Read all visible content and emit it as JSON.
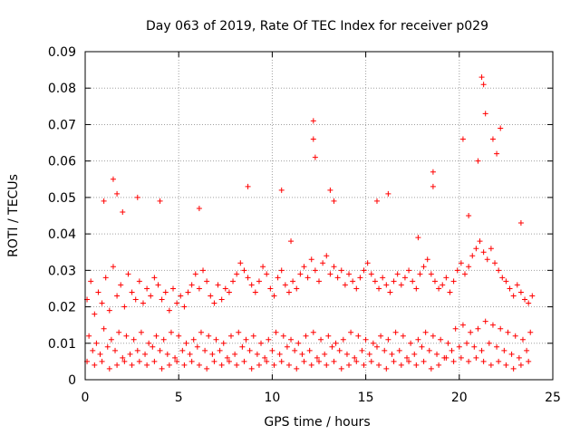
{
  "chart_data": {
    "type": "scatter",
    "title": "Day 063 of 2019, Rate Of TEC Index for receiver p029",
    "xlabel": "GPS time / hours",
    "ylabel": "ROTI / TECUs",
    "xlim": [
      0,
      25
    ],
    "ylim": [
      0,
      0.09
    ],
    "x_ticks": [
      0,
      5,
      10,
      15,
      20,
      25
    ],
    "x_tick_labels": [
      "0",
      "5",
      "10",
      "15",
      "20",
      "25"
    ],
    "y_ticks": [
      0,
      0.01,
      0.02,
      0.03,
      0.04,
      0.05,
      0.06,
      0.07,
      0.08,
      0.09
    ],
    "y_tick_labels": [
      "0",
      "0.01",
      "0.02",
      "0.03",
      "0.04",
      "0.05",
      "0.06",
      "0.07",
      "0.08",
      "0.09"
    ],
    "grid": true,
    "marker": "+",
    "series_color": "#ff0000",
    "series": [
      {
        "name": "ROTI",
        "x": [
          0.1,
          0.3,
          0.5,
          0.7,
          0.9,
          1.1,
          1.3,
          1.5,
          1.7,
          1.9,
          2.1,
          2.3,
          2.5,
          2.7,
          2.9,
          3.1,
          3.3,
          3.5,
          3.7,
          3.9,
          4.1,
          4.3,
          4.5,
          4.7,
          4.9,
          5.1,
          5.3,
          5.5,
          5.7,
          5.9,
          6.1,
          6.3,
          6.5,
          6.7,
          6.9,
          7.1,
          7.3,
          7.5,
          7.7,
          7.9,
          8.1,
          8.3,
          8.5,
          8.7,
          8.9,
          9.1,
          9.3,
          9.5,
          9.7,
          9.9,
          10.1,
          10.3,
          10.5,
          10.7,
          10.9,
          11.1,
          11.3,
          11.5,
          11.7,
          11.9,
          12.1,
          12.3,
          12.5,
          12.7,
          12.9,
          13.1,
          13.3,
          13.5,
          13.7,
          13.9,
          14.1,
          14.3,
          14.5,
          14.7,
          14.9,
          15.1,
          15.3,
          15.5,
          15.7,
          15.9,
          16.1,
          16.3,
          16.5,
          16.7,
          16.9,
          17.1,
          17.3,
          17.5,
          17.7,
          17.9,
          18.1,
          18.3,
          18.5,
          18.7,
          18.9,
          19.1,
          19.3,
          19.5,
          19.7,
          19.9,
          20.1,
          20.3,
          20.5,
          20.7,
          20.9,
          21.1,
          21.3,
          21.5,
          21.7,
          21.9,
          22.1,
          22.3,
          22.5,
          22.7,
          22.9,
          23.1,
          23.3,
          23.5,
          23.7,
          23.9,
          0.2,
          0.6,
          1.0,
          1.4,
          1.8,
          2.2,
          2.6,
          3.0,
          3.4,
          3.8,
          4.2,
          4.6,
          5.0,
          5.4,
          5.8,
          6.2,
          6.6,
          7.0,
          7.4,
          7.8,
          8.2,
          8.6,
          9.0,
          9.4,
          9.8,
          10.2,
          10.6,
          11.0,
          11.4,
          11.8,
          12.2,
          12.6,
          13.0,
          13.4,
          13.8,
          14.2,
          14.6,
          15.0,
          15.4,
          15.8,
          16.2,
          16.6,
          17.0,
          17.4,
          17.8,
          18.2,
          18.6,
          19.0,
          19.4,
          19.8,
          20.2,
          20.6,
          21.0,
          21.4,
          21.8,
          22.2,
          22.6,
          23.0,
          23.4,
          23.8,
          0.4,
          0.8,
          1.2,
          1.6,
          2.0,
          2.4,
          2.8,
          3.2,
          3.6,
          4.0,
          4.4,
          4.8,
          5.2,
          5.6,
          6.0,
          6.4,
          6.8,
          7.2,
          7.6,
          8.0,
          8.4,
          8.8,
          9.2,
          9.6,
          10.0,
          10.4,
          10.8,
          11.2,
          11.6,
          12.0,
          12.4,
          12.8,
          13.2,
          13.6,
          14.0,
          14.4,
          14.8,
          15.2,
          15.6,
          16.0,
          16.4,
          16.8,
          17.2,
          17.6,
          18.0,
          18.4,
          18.8,
          19.2,
          19.6,
          20.0,
          20.4,
          20.8,
          21.2,
          21.6,
          22.0,
          22.4,
          22.8,
          23.2,
          23.6,
          0.1,
          0.5,
          0.9,
          1.3,
          1.7,
          2.1,
          2.5,
          2.9,
          3.3,
          3.7,
          4.1,
          4.5,
          4.9,
          5.3,
          5.7,
          6.1,
          6.5,
          6.9,
          7.3,
          7.7,
          8.1,
          8.5,
          8.9,
          9.3,
          9.7,
          10.1,
          10.5,
          10.9,
          11.3,
          11.7,
          12.1,
          12.5,
          12.9,
          13.3,
          13.7,
          14.1,
          14.5,
          14.9,
          15.3,
          15.7,
          16.1,
          16.5,
          16.9,
          17.3,
          17.7,
          18.1,
          18.5,
          18.9,
          19.3,
          19.7,
          20.1,
          20.5,
          20.9,
          21.3,
          21.7,
          22.1,
          22.5,
          22.9,
          23.3,
          23.7,
          1.0,
          1.5,
          1.7,
          2.0,
          2.8,
          4.0,
          6.1,
          8.7,
          10.5,
          11.0,
          12.2,
          12.2,
          12.3,
          13.1,
          13.3,
          15.6,
          16.2,
          17.8,
          18.6,
          18.6,
          20.2,
          20.5,
          21.0,
          21.2,
          21.3,
          21.4,
          21.8,
          22.0,
          22.2,
          23.3
        ],
        "y": [
          0.022,
          0.027,
          0.018,
          0.024,
          0.021,
          0.028,
          0.019,
          0.031,
          0.023,
          0.026,
          0.02,
          0.029,
          0.024,
          0.022,
          0.027,
          0.021,
          0.025,
          0.023,
          0.028,
          0.026,
          0.022,
          0.024,
          0.019,
          0.025,
          0.021,
          0.023,
          0.02,
          0.024,
          0.026,
          0.029,
          0.025,
          0.03,
          0.027,
          0.023,
          0.021,
          0.026,
          0.022,
          0.025,
          0.024,
          0.027,
          0.029,
          0.032,
          0.03,
          0.028,
          0.026,
          0.024,
          0.027,
          0.031,
          0.029,
          0.025,
          0.023,
          0.028,
          0.03,
          0.026,
          0.024,
          0.027,
          0.025,
          0.029,
          0.031,
          0.028,
          0.033,
          0.03,
          0.027,
          0.032,
          0.034,
          0.029,
          0.031,
          0.028,
          0.03,
          0.026,
          0.029,
          0.027,
          0.025,
          0.028,
          0.03,
          0.032,
          0.029,
          0.027,
          0.025,
          0.028,
          0.026,
          0.024,
          0.027,
          0.029,
          0.026,
          0.028,
          0.03,
          0.027,
          0.025,
          0.029,
          0.031,
          0.033,
          0.029,
          0.027,
          0.025,
          0.026,
          0.028,
          0.024,
          0.027,
          0.03,
          0.032,
          0.029,
          0.031,
          0.034,
          0.036,
          0.038,
          0.035,
          0.033,
          0.036,
          0.032,
          0.03,
          0.028,
          0.027,
          0.025,
          0.023,
          0.026,
          0.024,
          0.022,
          0.021,
          0.023,
          0.012,
          0.01,
          0.014,
          0.011,
          0.013,
          0.012,
          0.011,
          0.013,
          0.01,
          0.012,
          0.011,
          0.013,
          0.012,
          0.01,
          0.011,
          0.013,
          0.012,
          0.011,
          0.01,
          0.012,
          0.013,
          0.011,
          0.012,
          0.01,
          0.011,
          0.013,
          0.012,
          0.011,
          0.01,
          0.012,
          0.013,
          0.011,
          0.012,
          0.01,
          0.011,
          0.013,
          0.012,
          0.011,
          0.01,
          0.012,
          0.011,
          0.013,
          0.012,
          0.01,
          0.011,
          0.013,
          0.012,
          0.011,
          0.01,
          0.014,
          0.015,
          0.013,
          0.014,
          0.016,
          0.015,
          0.014,
          0.013,
          0.012,
          0.011,
          0.013,
          0.008,
          0.007,
          0.009,
          0.008,
          0.006,
          0.007,
          0.008,
          0.007,
          0.009,
          0.008,
          0.007,
          0.006,
          0.008,
          0.007,
          0.009,
          0.008,
          0.007,
          0.008,
          0.006,
          0.007,
          0.009,
          0.008,
          0.007,
          0.006,
          0.008,
          0.007,
          0.009,
          0.008,
          0.007,
          0.008,
          0.006,
          0.007,
          0.009,
          0.008,
          0.007,
          0.006,
          0.008,
          0.007,
          0.009,
          0.008,
          0.007,
          0.008,
          0.006,
          0.007,
          0.009,
          0.008,
          0.007,
          0.006,
          0.008,
          0.009,
          0.01,
          0.009,
          0.008,
          0.01,
          0.009,
          0.008,
          0.007,
          0.006,
          0.008,
          0.005,
          0.004,
          0.005,
          0.003,
          0.004,
          0.005,
          0.004,
          0.005,
          0.004,
          0.005,
          0.003,
          0.004,
          0.005,
          0.004,
          0.005,
          0.004,
          0.003,
          0.005,
          0.004,
          0.005,
          0.004,
          0.005,
          0.003,
          0.004,
          0.005,
          0.004,
          0.005,
          0.004,
          0.003,
          0.005,
          0.004,
          0.005,
          0.004,
          0.005,
          0.003,
          0.004,
          0.005,
          0.004,
          0.005,
          0.004,
          0.003,
          0.005,
          0.004,
          0.005,
          0.004,
          0.005,
          0.003,
          0.004,
          0.006,
          0.005,
          0.006,
          0.005,
          0.006,
          0.005,
          0.004,
          0.005,
          0.004,
          0.003,
          0.004,
          0.005,
          0.049,
          0.055,
          0.051,
          0.046,
          0.05,
          0.049,
          0.047,
          0.053,
          0.052,
          0.038,
          0.071,
          0.066,
          0.061,
          0.052,
          0.049,
          0.049,
          0.051,
          0.039,
          0.057,
          0.053,
          0.066,
          0.045,
          0.06,
          0.083,
          0.081,
          0.073,
          0.066,
          0.062,
          0.069,
          0.043
        ]
      }
    ]
  }
}
